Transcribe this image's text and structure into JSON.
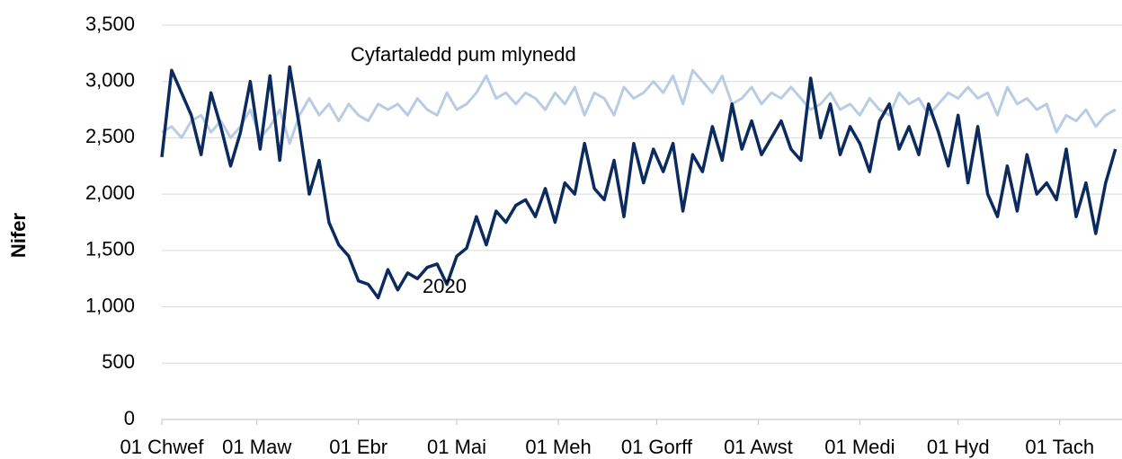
{
  "chart_data": {
    "type": "line",
    "y_label": "Nifer",
    "annotations": [
      "Cyfartaledd pum mlynedd",
      "2020"
    ],
    "x": [
      32,
      35,
      38,
      41,
      44,
      47,
      50,
      53,
      56,
      59,
      62,
      65,
      68,
      71,
      74,
      77,
      80,
      83,
      86,
      89,
      92,
      95,
      98,
      101,
      104,
      107,
      110,
      113,
      116,
      119,
      122,
      125,
      128,
      131,
      134,
      137,
      140,
      143,
      146,
      149,
      152,
      155,
      158,
      161,
      164,
      167,
      170,
      173,
      176,
      179,
      182,
      185,
      188,
      191,
      194,
      197,
      200,
      203,
      206,
      209,
      212,
      215,
      218,
      221,
      224,
      227,
      230,
      233,
      236,
      239,
      242,
      245,
      248,
      251,
      254,
      257,
      260,
      263,
      266,
      269,
      272,
      275,
      278,
      281,
      284,
      287,
      290,
      293,
      296,
      299,
      302,
      305,
      308,
      311,
      314,
      317,
      320,
      323
    ],
    "series": [
      {
        "name": "Cyfartaledd pum mlynedd",
        "color": "#b8cce4",
        "values": [
          2550,
          2600,
          2500,
          2650,
          2700,
          2550,
          2650,
          2500,
          2600,
          2750,
          2500,
          2600,
          2750,
          2450,
          2700,
          2850,
          2700,
          2800,
          2650,
          2800,
          2700,
          2650,
          2800,
          2750,
          2800,
          2700,
          2850,
          2750,
          2700,
          2900,
          2750,
          2800,
          2900,
          3050,
          2850,
          2900,
          2800,
          2900,
          2850,
          2750,
          2900,
          2800,
          2950,
          2700,
          2900,
          2850,
          2700,
          2950,
          2850,
          2900,
          3000,
          2900,
          3050,
          2800,
          3100,
          3000,
          2900,
          3050,
          2800,
          2850,
          2950,
          2800,
          2900,
          2850,
          2950,
          2850,
          2750,
          2800,
          2900,
          2750,
          2800,
          2700,
          2850,
          2750,
          2700,
          2900,
          2800,
          2850,
          2700,
          2800,
          2900,
          2850,
          2950,
          2850,
          2900,
          2700,
          2950,
          2800,
          2850,
          2750,
          2800,
          2550,
          2700,
          2650,
          2750,
          2600,
          2700,
          2750
        ]
      },
      {
        "name": "2020",
        "color": "#0b2a5e",
        "values": [
          2330,
          3100,
          2900,
          2700,
          2350,
          2900,
          2600,
          2250,
          2550,
          3000,
          2400,
          3050,
          2300,
          3130,
          2600,
          2000,
          2300,
          1750,
          1550,
          1450,
          1230,
          1200,
          1080,
          1330,
          1150,
          1300,
          1250,
          1350,
          1380,
          1200,
          1450,
          1520,
          1800,
          1550,
          1850,
          1750,
          1900,
          1950,
          1800,
          2050,
          1750,
          2100,
          2000,
          2450,
          2050,
          1950,
          2300,
          1800,
          2450,
          2100,
          2400,
          2200,
          2450,
          1850,
          2350,
          2200,
          2600,
          2300,
          2800,
          2400,
          2650,
          2350,
          2500,
          2650,
          2400,
          2300,
          3030,
          2500,
          2800,
          2350,
          2600,
          2450,
          2200,
          2650,
          2800,
          2400,
          2600,
          2350,
          2800,
          2550,
          2250,
          2700,
          2100,
          2600,
          2000,
          1800,
          2250,
          1850,
          2350,
          2000,
          2100,
          1950,
          2400,
          1800,
          2100,
          1650,
          2100,
          2400
        ]
      }
    ],
    "xlim": [
      32,
      325
    ],
    "xticks": [
      {
        "value": 32,
        "label": "01 Chwef"
      },
      {
        "value": 61,
        "label": "01 Maw"
      },
      {
        "value": 92,
        "label": "01 Ebr"
      },
      {
        "value": 122,
        "label": "01 Mai"
      },
      {
        "value": 153,
        "label": "01 Meh"
      },
      {
        "value": 183,
        "label": "01 Gorff"
      },
      {
        "value": 214,
        "label": "01 Awst"
      },
      {
        "value": 245,
        "label": "01 Medi"
      },
      {
        "value": 275,
        "label": "01 Hyd"
      },
      {
        "value": 306,
        "label": "01 Tach"
      }
    ],
    "ylim": [
      0,
      3500
    ],
    "yticks": [
      0,
      500,
      {
        "value": 1000,
        "label": "1,000"
      },
      {
        "value": 1500,
        "label": "1,500"
      },
      {
        "value": 2000,
        "label": "2,000"
      },
      {
        "value": 2500,
        "label": "2,500"
      },
      {
        "value": 3000,
        "label": "3,000"
      },
      {
        "value": 3500,
        "label": "3,500"
      }
    ],
    "grid": true
  }
}
